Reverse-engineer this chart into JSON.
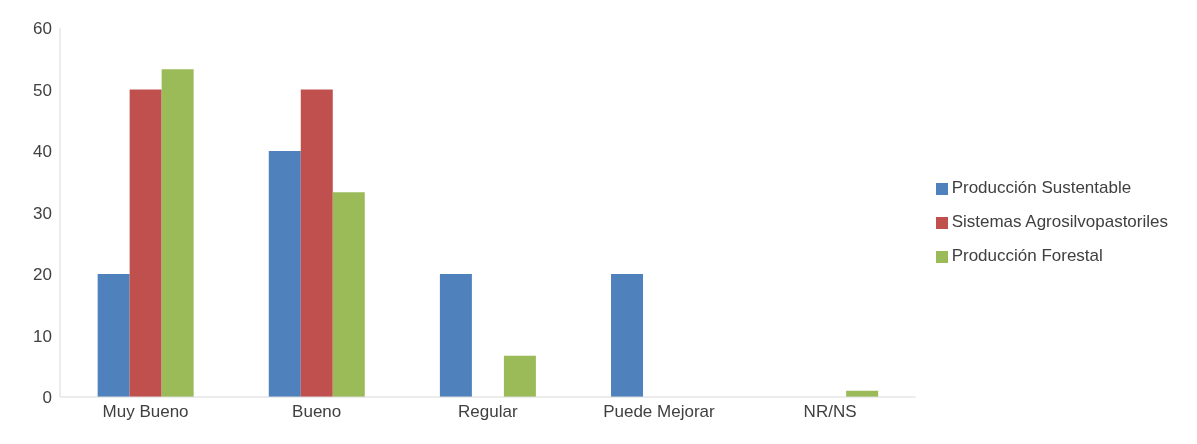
{
  "chart_data": {
    "type": "bar",
    "categories": [
      "Muy Bueno",
      "Bueno",
      "Regular",
      "Puede Mejorar",
      "NR/NS"
    ],
    "series": [
      {
        "name": "Producción Sustentable",
        "color": "#4f81bd",
        "values": [
          20,
          40,
          20,
          20,
          0
        ]
      },
      {
        "name": "Sistemas Agrosilvopastoriles",
        "color": "#c0504d",
        "values": [
          50,
          50,
          0,
          0,
          0
        ]
      },
      {
        "name": "Producción Forestal",
        "color": "#9bbb59",
        "values": [
          53.3,
          33.3,
          6.7,
          0,
          1
        ]
      }
    ],
    "ylim": [
      0,
      60
    ],
    "yticks": [
      0,
      10,
      20,
      30,
      40,
      50,
      60
    ],
    "grid": false,
    "legend": "right"
  }
}
